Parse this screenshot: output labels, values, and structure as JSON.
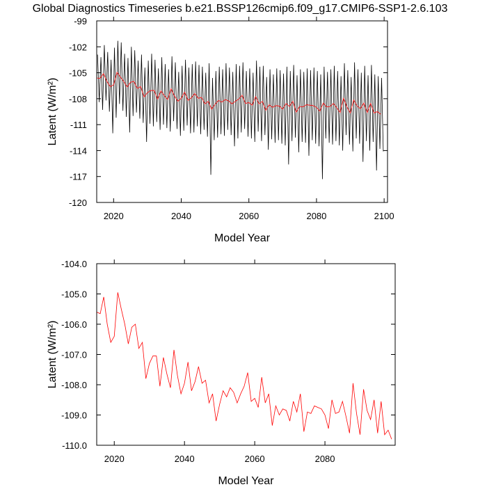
{
  "chart_data": [
    {
      "type": "line",
      "title": "Global Diagnostics Timeseries b.e21.BSSP126cmip6.f09_g17.CMIP6-SSP1-2.6.103",
      "xlabel": "Model Year",
      "ylabel": "Latent (W/m²)",
      "xlim": [
        2015,
        2101
      ],
      "xticks": [
        2020,
        2040,
        2060,
        2080,
        2100
      ],
      "ylim": [
        -120,
        -99
      ],
      "yticks": [
        -99,
        -102,
        -105,
        -108,
        -111,
        -114,
        -117,
        -120
      ],
      "series": [
        {
          "color": "#000000",
          "x": [
            2015.25,
            2015.75,
            2016.25,
            2016.75,
            2017.25,
            2017.75,
            2018.25,
            2018.75,
            2019.25,
            2019.75,
            2020.25,
            2020.75,
            2021.25,
            2021.75,
            2022.25,
            2022.75,
            2023.25,
            2023.75,
            2024.25,
            2024.75,
            2025.25,
            2025.75,
            2026.25,
            2026.75,
            2027.25,
            2027.75,
            2028.25,
            2028.75,
            2029.25,
            2029.75,
            2030.25,
            2030.75,
            2031.25,
            2031.75,
            2032.25,
            2032.75,
            2033.25,
            2033.75,
            2034.25,
            2034.75,
            2035.25,
            2035.75,
            2036.25,
            2036.75,
            2037.25,
            2037.75,
            2038.25,
            2038.75,
            2039.25,
            2039.75,
            2040.25,
            2040.75,
            2041.25,
            2041.75,
            2042.25,
            2042.75,
            2043.25,
            2043.75,
            2044.25,
            2044.75,
            2045.25,
            2045.75,
            2046.25,
            2046.75,
            2047.25,
            2047.75,
            2048.25,
            2048.75,
            2049.25,
            2049.75,
            2050.25,
            2050.75,
            2051.25,
            2051.75,
            2052.25,
            2052.75,
            2053.25,
            2053.75,
            2054.25,
            2054.75,
            2055.25,
            2055.75,
            2056.25,
            2056.75,
            2057.25,
            2057.75,
            2058.25,
            2058.75,
            2059.25,
            2059.75,
            2060.25,
            2060.75,
            2061.25,
            2061.75,
            2062.25,
            2062.75,
            2063.25,
            2063.75,
            2064.25,
            2064.75,
            2065.25,
            2065.75,
            2066.25,
            2066.75,
            2067.25,
            2067.75,
            2068.25,
            2068.75,
            2069.25,
            2069.75,
            2070.25,
            2070.75,
            2071.25,
            2071.75,
            2072.25,
            2072.75,
            2073.25,
            2073.75,
            2074.25,
            2074.75,
            2075.25,
            2075.75,
            2076.25,
            2076.75,
            2077.25,
            2077.75,
            2078.25,
            2078.75,
            2079.25,
            2079.75,
            2080.25,
            2080.75,
            2081.25,
            2081.75,
            2082.25,
            2082.75,
            2083.25,
            2083.75,
            2084.25,
            2084.75,
            2085.25,
            2085.75,
            2086.25,
            2086.75,
            2087.25,
            2087.75,
            2088.25,
            2088.75,
            2089.25,
            2089.75,
            2090.25,
            2090.75,
            2091.25,
            2091.75,
            2092.25,
            2092.75,
            2093.25,
            2093.75,
            2094.25,
            2094.75,
            2095.25,
            2095.75,
            2096.25,
            2096.75,
            2097.25,
            2097.75,
            2098.25,
            2098.75,
            2099.25,
            2099.75
          ],
          "values": [
            -102.9,
            -108.4,
            -103.2,
            -109.3,
            -101.8,
            -108.2,
            -102.6,
            -109.5,
            -103.5,
            -112.0,
            -102.1,
            -110.2,
            -101.3,
            -108.6,
            -101.5,
            -109.4,
            -102.8,
            -110.1,
            -103.3,
            -111.9,
            -102.0,
            -110.0,
            -102.4,
            -109.6,
            -103.6,
            -110.3,
            -102.9,
            -110.8,
            -104.4,
            -113.0,
            -103.6,
            -110.9,
            -102.8,
            -111.2,
            -103.5,
            -110.7,
            -104.5,
            -111.6,
            -103.2,
            -111.0,
            -104.0,
            -111.4,
            -104.6,
            -111.8,
            -103.1,
            -110.6,
            -103.8,
            -111.5,
            -104.9,
            -112.3,
            -104.2,
            -111.7,
            -103.5,
            -111.1,
            -104.4,
            -112.0,
            -104.0,
            -111.9,
            -103.7,
            -111.2,
            -104.1,
            -112.1,
            -104.3,
            -111.6,
            -105.0,
            -112.4,
            -103.9,
            -116.8,
            -105.6,
            -112.8,
            -104.8,
            -112.5,
            -104.3,
            -112.1,
            -104.6,
            -112.3,
            -103.9,
            -111.6,
            -104.4,
            -112.2,
            -104.9,
            -113.5,
            -104.0,
            -112.6,
            -104.2,
            -111.9,
            -103.8,
            -111.5,
            -104.8,
            -112.4,
            -104.5,
            -112.6,
            -105.0,
            -113.0,
            -103.6,
            -111.8,
            -104.3,
            -112.9,
            -104.2,
            -112.2,
            -105.5,
            -113.9,
            -104.6,
            -112.7,
            -105.2,
            -113.1,
            -104.5,
            -112.8,
            -104.7,
            -113.2,
            -105.1,
            -113.4,
            -104.3,
            -115.6,
            -104.8,
            -112.9,
            -104.1,
            -112.5,
            -105.3,
            -114.2,
            -104.6,
            -113.0,
            -104.9,
            -113.1,
            -104.5,
            -114.6,
            -104.7,
            -112.8,
            -104.4,
            -113.2,
            -104.8,
            -113.5,
            -105.2,
            -117.3,
            -104.3,
            -112.6,
            -104.9,
            -113.1,
            -104.6,
            -113.3,
            -104.2,
            -112.9,
            -104.8,
            -113.4,
            -105.4,
            -114.0,
            -103.9,
            -112.2,
            -104.7,
            -113.3,
            -105.5,
            -114.1,
            -103.8,
            -112.6,
            -104.6,
            -113.2,
            -105.0,
            -115.3,
            -104.2,
            -112.9,
            -105.3,
            -114.0,
            -104.1,
            -113.0,
            -105.2,
            -116.3,
            -105.4,
            -113.8,
            -105.6,
            -114.1
          ]
        },
        {
          "color": "#ff0000",
          "x": [
            2015,
            2016,
            2017,
            2018,
            2019,
            2020,
            2021,
            2022,
            2023,
            2024,
            2025,
            2026,
            2027,
            2028,
            2029,
            2030,
            2031,
            2032,
            2033,
            2034,
            2035,
            2036,
            2037,
            2038,
            2039,
            2040,
            2041,
            2042,
            2043,
            2044,
            2045,
            2046,
            2047,
            2048,
            2049,
            2050,
            2051,
            2052,
            2053,
            2054,
            2055,
            2056,
            2057,
            2058,
            2059,
            2060,
            2061,
            2062,
            2063,
            2064,
            2065,
            2066,
            2067,
            2068,
            2069,
            2070,
            2071,
            2072,
            2073,
            2074,
            2075,
            2076,
            2077,
            2078,
            2079,
            2080,
            2081,
            2082,
            2083,
            2084,
            2085,
            2086,
            2087,
            2088,
            2089,
            2090,
            2091,
            2092,
            2093,
            2094,
            2095,
            2096,
            2097,
            2098,
            2099
          ],
          "values": [
            -105.6,
            -105.65,
            -105.1,
            -106.0,
            -106.6,
            -106.4,
            -104.95,
            -105.5,
            -106.0,
            -106.65,
            -106.1,
            -106.0,
            -106.8,
            -106.6,
            -107.8,
            -107.3,
            -107.05,
            -107.05,
            -108.05,
            -107.1,
            -107.65,
            -108.1,
            -106.85,
            -107.7,
            -108.3,
            -107.95,
            -107.25,
            -108.2,
            -107.9,
            -107.4,
            -107.95,
            -107.85,
            -108.6,
            -108.3,
            -109.2,
            -108.65,
            -108.2,
            -108.4,
            -108.1,
            -108.25,
            -108.6,
            -108.3,
            -108.05,
            -107.6,
            -108.55,
            -108.45,
            -108.75,
            -107.75,
            -108.6,
            -108.3,
            -109.35,
            -108.7,
            -109.0,
            -108.8,
            -108.85,
            -109.2,
            -108.55,
            -108.9,
            -108.3,
            -109.55,
            -108.9,
            -108.95,
            -108.7,
            -108.75,
            -108.8,
            -109.0,
            -109.45,
            -108.5,
            -108.95,
            -108.9,
            -108.55,
            -109.05,
            -109.6,
            -107.95,
            -108.95,
            -109.65,
            -108.15,
            -108.85,
            -109.15,
            -108.5,
            -109.6,
            -108.55,
            -109.65,
            -109.5,
            -109.8
          ]
        }
      ]
    },
    {
      "type": "line",
      "xlabel": "Model Year",
      "ylabel": "Latent (W/m²)",
      "xlim": [
        2015,
        2100
      ],
      "xticks": [
        2020,
        2040,
        2060,
        2080
      ],
      "ylim": [
        -110,
        -104
      ],
      "yticks": [
        {
          "value": -104,
          "label": "-104.0"
        },
        {
          "value": -105,
          "label": "-105.0"
        },
        {
          "value": -106,
          "label": "-106.0"
        },
        {
          "value": -107,
          "label": "-107.0"
        },
        {
          "value": -108,
          "label": "-108.0"
        },
        {
          "value": -109,
          "label": "-109.0"
        },
        {
          "value": -110,
          "label": "-110.0"
        }
      ],
      "series": [
        {
          "color": "#ff0000",
          "x": [
            2015,
            2016,
            2017,
            2018,
            2019,
            2020,
            2021,
            2022,
            2023,
            2024,
            2025,
            2026,
            2027,
            2028,
            2029,
            2030,
            2031,
            2032,
            2033,
            2034,
            2035,
            2036,
            2037,
            2038,
            2039,
            2040,
            2041,
            2042,
            2043,
            2044,
            2045,
            2046,
            2047,
            2048,
            2049,
            2050,
            2051,
            2052,
            2053,
            2054,
            2055,
            2056,
            2057,
            2058,
            2059,
            2060,
            2061,
            2062,
            2063,
            2064,
            2065,
            2066,
            2067,
            2068,
            2069,
            2070,
            2071,
            2072,
            2073,
            2074,
            2075,
            2076,
            2077,
            2078,
            2079,
            2080,
            2081,
            2082,
            2083,
            2084,
            2085,
            2086,
            2087,
            2088,
            2089,
            2090,
            2091,
            2092,
            2093,
            2094,
            2095,
            2096,
            2097,
            2098,
            2099
          ],
          "values": [
            -105.6,
            -105.65,
            -105.1,
            -106.0,
            -106.6,
            -106.4,
            -104.95,
            -105.5,
            -106.0,
            -106.65,
            -106.1,
            -106.0,
            -106.8,
            -106.6,
            -107.8,
            -107.3,
            -107.05,
            -107.05,
            -108.05,
            -107.1,
            -107.65,
            -108.1,
            -106.85,
            -107.7,
            -108.3,
            -107.95,
            -107.25,
            -108.2,
            -107.9,
            -107.4,
            -107.95,
            -107.85,
            -108.6,
            -108.3,
            -109.2,
            -108.65,
            -108.2,
            -108.4,
            -108.1,
            -108.25,
            -108.6,
            -108.3,
            -108.05,
            -107.6,
            -108.55,
            -108.45,
            -108.75,
            -107.75,
            -108.6,
            -108.3,
            -109.35,
            -108.7,
            -109.0,
            -108.8,
            -108.85,
            -109.2,
            -108.55,
            -108.9,
            -108.3,
            -109.55,
            -108.9,
            -108.95,
            -108.7,
            -108.75,
            -108.8,
            -109.0,
            -109.45,
            -108.5,
            -108.95,
            -108.9,
            -108.55,
            -109.05,
            -109.6,
            -107.95,
            -108.95,
            -109.65,
            -108.15,
            -108.85,
            -109.15,
            -108.5,
            -109.6,
            -108.55,
            -109.65,
            -109.5,
            -109.8
          ]
        }
      ]
    }
  ]
}
